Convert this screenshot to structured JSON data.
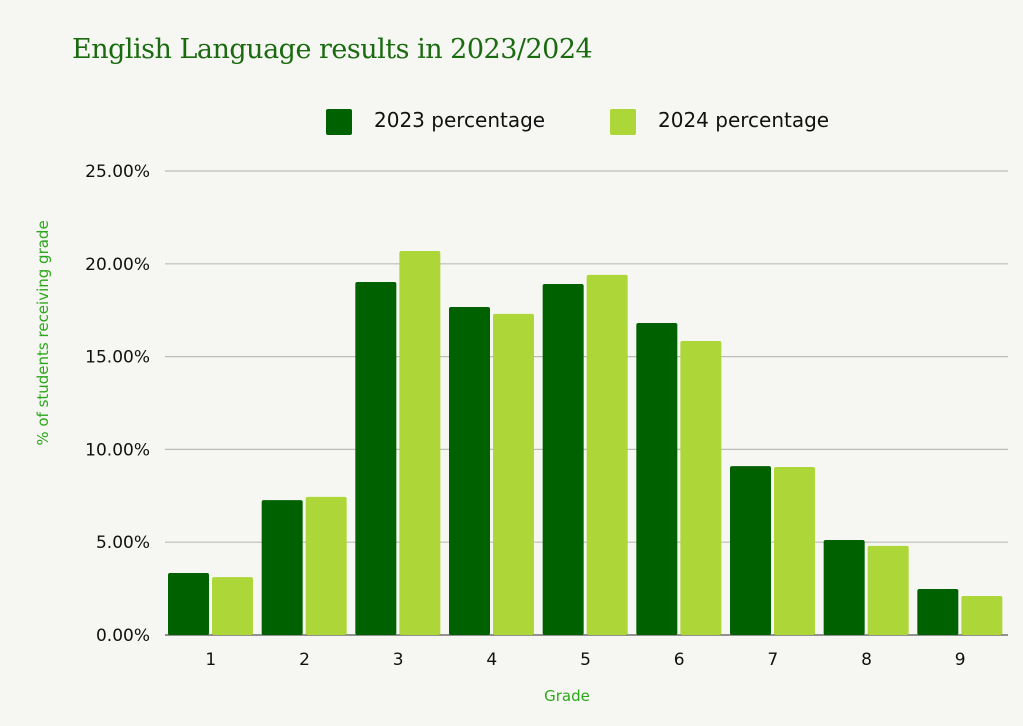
{
  "chart_data": {
    "type": "bar",
    "title": "English Language results in 2023/2024",
    "xlabel": "Grade",
    "ylabel": "% of students receiving grade",
    "ylim": [
      0,
      25
    ],
    "yticks": [
      "0.00%",
      "5.00%",
      "10.00%",
      "15.00%",
      "20.00%",
      "25.00%"
    ],
    "grid": true,
    "legend_position": "top-center",
    "categories": [
      "1",
      "2",
      "3",
      "4",
      "5",
      "6",
      "7",
      "8",
      "9"
    ],
    "series": [
      {
        "name": "2023 percentage",
        "color": "#006100",
        "values": [
          3.34,
          7.27,
          19.02,
          17.67,
          18.91,
          16.81,
          9.1,
          5.12,
          2.48
        ]
      },
      {
        "name": "2024 percentage",
        "color": "#add739",
        "values": [
          3.12,
          7.44,
          20.69,
          17.3,
          19.4,
          15.84,
          9.05,
          4.8,
          2.1
        ]
      }
    ]
  }
}
